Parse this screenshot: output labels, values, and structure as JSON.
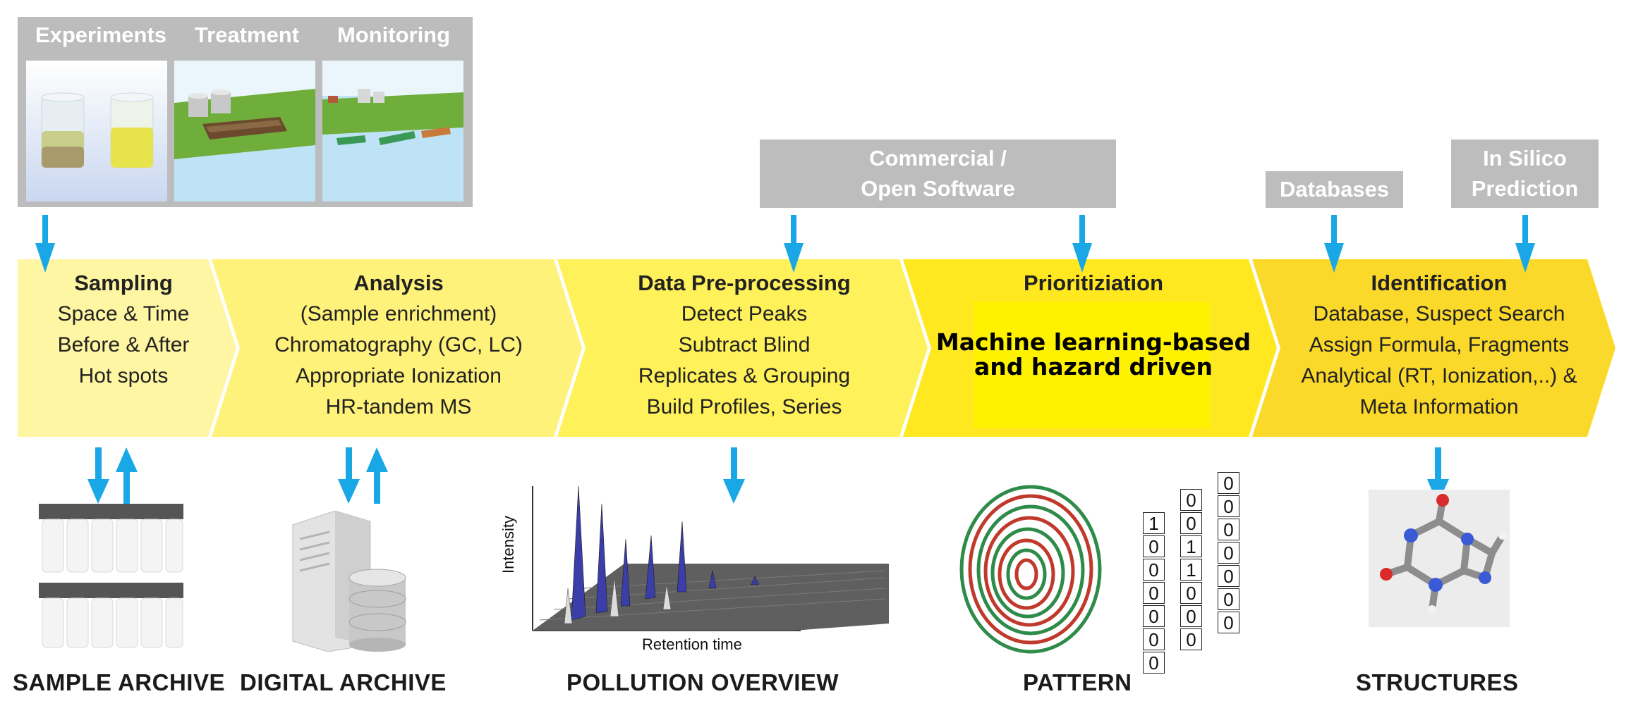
{
  "top_panel": {
    "headers": [
      "Experiments",
      "Treatment",
      "Monitoring"
    ]
  },
  "banners": {
    "software": [
      "Commercial /",
      "Open Software"
    ],
    "databases": "Databases",
    "insilico": [
      "In Silico",
      "Prediction"
    ]
  },
  "steps": [
    {
      "title": "Sampling",
      "lines": [
        "Space & Time",
        "Before & After",
        "Hot spots"
      ]
    },
    {
      "title": "Analysis",
      "lines": [
        "(Sample enrichment)",
        "Chromatography (GC, LC)",
        "Appropriate Ionization",
        "HR-tandem MS"
      ]
    },
    {
      "title": "Data Pre-processing",
      "lines": [
        "Detect Peaks",
        "Subtract Blind",
        "Replicates & Grouping",
        "Build Profiles, Series"
      ]
    },
    {
      "title": "Prioritiziation",
      "highlight": [
        "Machine learning-based",
        "and hazard driven"
      ]
    },
    {
      "title": "Identification",
      "lines": [
        "Database, Suspect Search",
        "Assign Formula, Fragments",
        "Analytical (RT, Ionization,..) &",
        "Meta Information"
      ]
    }
  ],
  "plot_axes": {
    "y": "Intensity",
    "x": "Retention time"
  },
  "bit_columns": [
    [
      "1",
      "0",
      "0",
      "0",
      "0",
      "0",
      "0"
    ],
    [
      "0",
      "0",
      "1",
      "1",
      "0",
      "0",
      "0"
    ],
    [
      "0",
      "0",
      "0",
      "0",
      "0",
      "0",
      "0"
    ]
  ],
  "bottom_labels": [
    "SAMPLE ARCHIVE",
    "DIGITAL ARCHIVE",
    "POLLUTION OVERVIEW",
    "PATTERN",
    "STRUCTURES"
  ],
  "colors": {
    "arrow": "#1aa7e6",
    "banner_gray": "#bdbdbd",
    "step_colors": [
      "#fff6a3",
      "#fff27a",
      "#fff15a",
      "#ffe820",
      "#fbd92a"
    ],
    "highlight": "#fff200"
  }
}
